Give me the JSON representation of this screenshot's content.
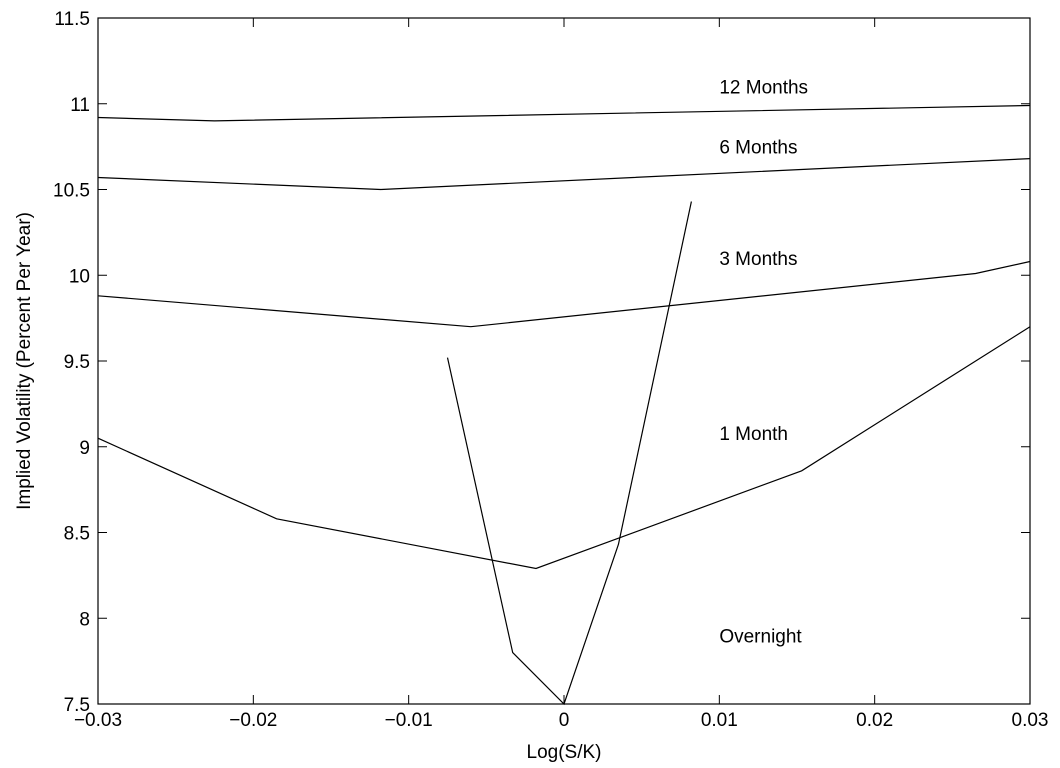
{
  "chart_data": {
    "type": "line",
    "xlabel": "Log(S/K)",
    "ylabel": "Implied Volatility (Percent Per Year)",
    "xlim": [
      -0.03,
      0.03
    ],
    "ylim": [
      7.5,
      11.5
    ],
    "xticks": [
      -0.03,
      -0.02,
      -0.01,
      0,
      0.01,
      0.02,
      0.03
    ],
    "xtick_labels": [
      "−0.03",
      "−0.02",
      "−0.01",
      "0",
      "0.01",
      "0.02",
      "0.03"
    ],
    "yticks": [
      7.5,
      8,
      8.5,
      9,
      9.5,
      10,
      10.5,
      11,
      11.5
    ],
    "ytick_labels": [
      "7.5",
      "8",
      "8.5",
      "9",
      "9.5",
      "10",
      "10.5",
      "11",
      "11.5"
    ],
    "grid": false,
    "series": [
      {
        "name": "12 Months",
        "points": [
          [
            -0.03,
            10.92
          ],
          [
            -0.0225,
            10.9
          ],
          [
            0.03,
            10.99
          ]
        ]
      },
      {
        "name": "6 Months",
        "points": [
          [
            -0.03,
            10.57
          ],
          [
            -0.0118,
            10.5
          ],
          [
            0.03,
            10.68
          ]
        ]
      },
      {
        "name": "3 Months",
        "points": [
          [
            -0.03,
            9.88
          ],
          [
            -0.006,
            9.7
          ],
          [
            0.0265,
            10.01
          ],
          [
            0.03,
            10.08
          ]
        ]
      },
      {
        "name": "1 Month",
        "points": [
          [
            -0.03,
            9.05
          ],
          [
            -0.0185,
            8.58
          ],
          [
            -0.0018,
            8.29
          ],
          [
            0.0153,
            8.86
          ],
          [
            0.03,
            9.7
          ]
        ]
      },
      {
        "name": "Overnight",
        "points": [
          [
            -0.0075,
            9.52
          ],
          [
            -0.0033,
            7.8
          ],
          [
            0,
            7.5
          ],
          [
            0.0035,
            8.43
          ],
          [
            0.0082,
            10.43
          ]
        ]
      }
    ],
    "annotations": [
      {
        "text": "12 Months",
        "x": 0.01,
        "y": 11.1
      },
      {
        "text": "6 Months",
        "x": 0.01,
        "y": 10.75
      },
      {
        "text": "3 Months",
        "x": 0.01,
        "y": 10.1
      },
      {
        "text": "1 Month",
        "x": 0.01,
        "y": 9.08
      },
      {
        "text": "Overnight",
        "x": 0.01,
        "y": 7.9
      }
    ]
  }
}
